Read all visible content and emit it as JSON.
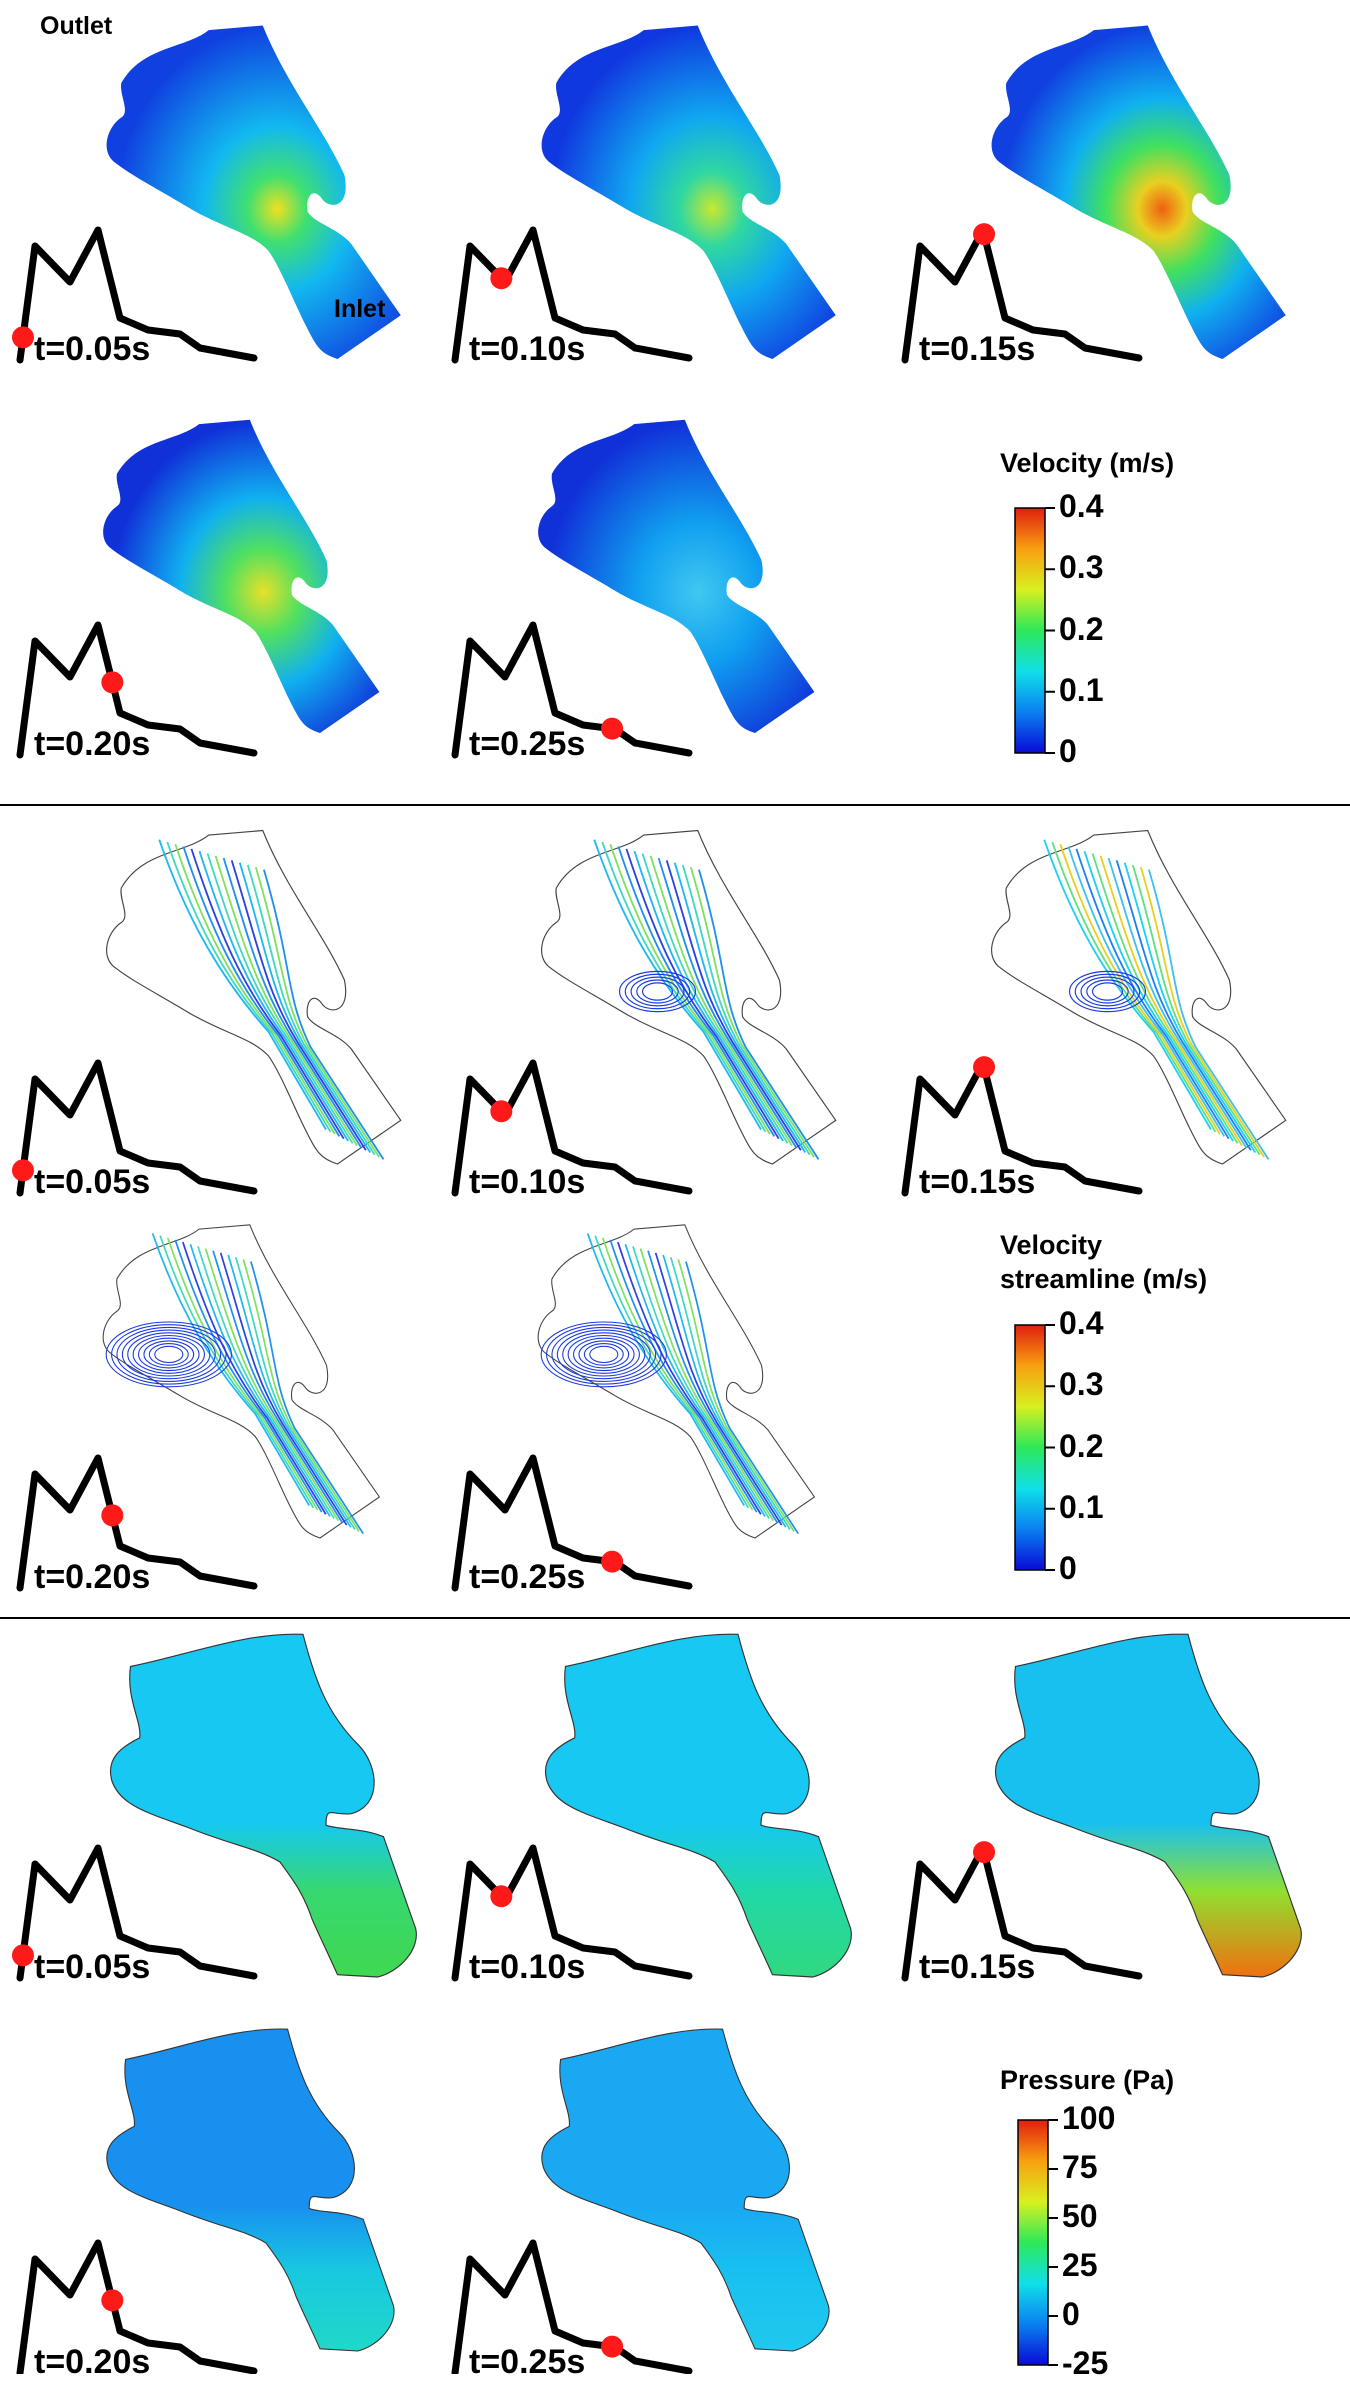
{
  "labels": {
    "outlet": "Outlet",
    "inlet": "Inlet"
  },
  "panel_time_labels": [
    "t=0.05s",
    "t=0.10s",
    "t=0.15s",
    "t=0.20s",
    "t=0.25s"
  ],
  "sections": [
    {
      "name": "velocity-contour",
      "colorbar_title": [
        "Velocity  (m/s)"
      ],
      "colorbar_ticks": [
        "0.4",
        "0.3",
        "0.2",
        "0.1",
        "0"
      ]
    },
    {
      "name": "velocity-streamline",
      "colorbar_title": [
        "Velocity",
        "streamline  (m/s)"
      ],
      "colorbar_ticks": [
        "0.4",
        "0.3",
        "0.2",
        "0.1",
        "0"
      ]
    },
    {
      "name": "pressure-contour",
      "colorbar_title": [
        "Pressure  (Pa)"
      ],
      "colorbar_ticks": [
        "100",
        "75",
        "50",
        "25",
        "0",
        "-25"
      ]
    }
  ],
  "waveform_marker_fraction": [
    0.05,
    0.35,
    0.5,
    0.62,
    0.82
  ],
  "colormap": [
    "#0a0ad8",
    "#0a80f0",
    "#10e0e8",
    "#2ee85a",
    "#d8f020",
    "#f8a010",
    "#e01e10"
  ],
  "marker_color": "#ff1a1a"
}
